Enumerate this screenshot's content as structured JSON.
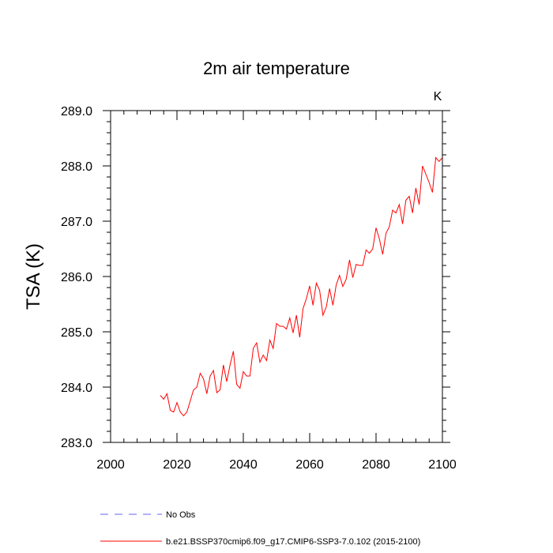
{
  "chart_data": {
    "type": "line",
    "title": "2m air temperature",
    "xlabel": "",
    "ylabel": "TSA  (K)",
    "units": "K",
    "xlim": [
      2000,
      2100
    ],
    "ylim": [
      283.0,
      289.0
    ],
    "x_ticks": [
      2000,
      2020,
      2040,
      2060,
      2080,
      2100
    ],
    "x_tick_labels": [
      "2000",
      "2020",
      "2040",
      "2060",
      "2080",
      "2100"
    ],
    "y_ticks": [
      283.0,
      284.0,
      285.0,
      286.0,
      287.0,
      288.0,
      289.0
    ],
    "y_tick_labels": [
      "283.0",
      "284.0",
      "285.0",
      "286.0",
      "287.0",
      "288.0",
      "289.0"
    ],
    "grid": false,
    "legend_position": "bottom",
    "series": [
      {
        "name": "b.e21.BSSP370cmip6.f09_g17.CMIP6-SSP3-7.0.102 (2015-2100)",
        "color": "#ff0000",
        "style": "solid",
        "x": [
          2015,
          2016,
          2017,
          2018,
          2019,
          2020,
          2021,
          2022,
          2023,
          2024,
          2025,
          2026,
          2027,
          2028,
          2029,
          2030,
          2031,
          2032,
          2033,
          2034,
          2035,
          2036,
          2037,
          2038,
          2039,
          2040,
          2041,
          2042,
          2043,
          2044,
          2045,
          2046,
          2047,
          2048,
          2049,
          2050,
          2051,
          2052,
          2053,
          2054,
          2055,
          2056,
          2057,
          2058,
          2059,
          2060,
          2061,
          2062,
          2063,
          2064,
          2065,
          2066,
          2067,
          2068,
          2069,
          2070,
          2071,
          2072,
          2073,
          2074,
          2075,
          2076,
          2077,
          2078,
          2079,
          2080,
          2081,
          2082,
          2083,
          2084,
          2085,
          2086,
          2087,
          2088,
          2089,
          2090,
          2091,
          2092,
          2093,
          2094,
          2095,
          2096,
          2097,
          2098,
          2099,
          2100
        ],
        "values": [
          283.85,
          283.78,
          283.88,
          283.58,
          283.55,
          283.72,
          283.55,
          283.48,
          283.55,
          283.75,
          283.95,
          284.0,
          284.25,
          284.15,
          283.88,
          284.2,
          284.3,
          283.9,
          283.95,
          284.4,
          284.1,
          284.4,
          284.65,
          284.05,
          283.98,
          284.28,
          284.2,
          284.2,
          284.7,
          284.8,
          284.45,
          284.58,
          284.48,
          284.85,
          284.7,
          285.15,
          285.1,
          285.1,
          285.05,
          285.25,
          284.98,
          285.3,
          284.9,
          285.42,
          285.6,
          285.83,
          285.48,
          285.88,
          285.75,
          285.3,
          285.45,
          285.78,
          285.48,
          285.85,
          286.02,
          285.82,
          285.95,
          286.3,
          285.98,
          286.22,
          286.2,
          286.2,
          286.48,
          286.42,
          286.5,
          286.88,
          286.68,
          286.4,
          286.78,
          286.9,
          287.2,
          287.15,
          287.3,
          286.95,
          287.38,
          287.45,
          287.15,
          287.6,
          287.3,
          288.0,
          287.85,
          287.7,
          287.52,
          288.15,
          288.08,
          288.15
        ]
      }
    ],
    "legend_entries": [
      {
        "label": "No Obs",
        "color": "#6666ff",
        "style": "dashed"
      },
      {
        "label": "b.e21.BSSP370cmip6.f09_g17.CMIP6-SSP3-7.0.102 (2015-2100)",
        "color": "#ff0000",
        "style": "solid"
      }
    ]
  }
}
